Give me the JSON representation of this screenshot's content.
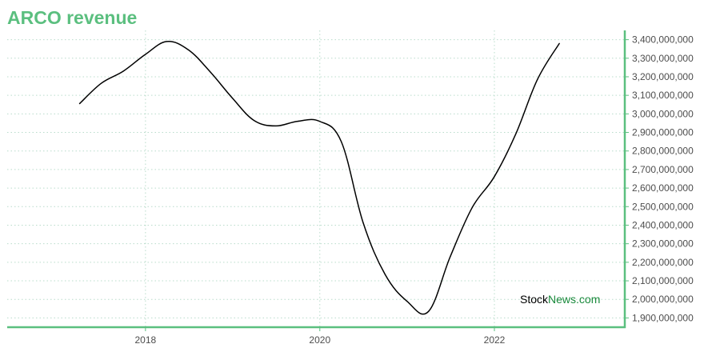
{
  "title": "ARCO revenue",
  "watermark": {
    "part1": "Stock",
    "part2": "News",
    "part3": ".com"
  },
  "colors": {
    "title": "#5bbf7f",
    "axis": "#5bbf7f",
    "grid": "#b9dccb",
    "line": "#000000",
    "tick_text": "#4d4d4d",
    "watermark_dark": "#000000",
    "watermark_green": "#1a8a3c"
  },
  "chart_data": {
    "type": "line",
    "title": "ARCO revenue",
    "xlabel": "",
    "ylabel": "",
    "grid": true,
    "x_range": [
      "2016-06-01",
      "2023-07-01"
    ],
    "ylim": [
      1850000000,
      3450000000
    ],
    "x_ticks": [
      {
        "date": "2018-01-01",
        "label": "2018"
      },
      {
        "date": "2020-01-01",
        "label": "2020"
      },
      {
        "date": "2022-01-01",
        "label": "2022"
      }
    ],
    "y_ticks": [
      1900000000,
      2000000000,
      2100000000,
      2200000000,
      2300000000,
      2400000000,
      2500000000,
      2600000000,
      2700000000,
      2800000000,
      2900000000,
      3000000000,
      3100000000,
      3200000000,
      3300000000,
      3400000000
    ],
    "y_tick_labels": [
      "1,900,000,000",
      "2,000,000,000",
      "2,100,000,000",
      "2,200,000,000",
      "2,300,000,000",
      "2,400,000,000",
      "2,500,000,000",
      "2,600,000,000",
      "2,700,000,000",
      "2,800,000,000",
      "2,900,000,000",
      "3,000,000,000",
      "3,100,000,000",
      "3,200,000,000",
      "3,300,000,000",
      "3,400,000,000"
    ],
    "series": [
      {
        "x": [
          "2017-03-31",
          "2017-06-30",
          "2017-09-30",
          "2017-12-31",
          "2018-03-31",
          "2018-06-30",
          "2018-09-30",
          "2018-12-31",
          "2019-03-31",
          "2019-06-30",
          "2019-09-30",
          "2019-12-31",
          "2020-03-31",
          "2020-06-30",
          "2020-09-30",
          "2020-12-31",
          "2021-03-31",
          "2021-06-30",
          "2021-09-30",
          "2021-12-31",
          "2022-03-31",
          "2022-06-30",
          "2022-09-30"
        ],
        "values": [
          3055000000,
          3165000000,
          3230000000,
          3320000000,
          3390000000,
          3345000000,
          3225000000,
          3085000000,
          2965000000,
          2935000000,
          2960000000,
          2960000000,
          2850000000,
          2415000000,
          2135000000,
          1990000000,
          1935000000,
          2230000000,
          2495000000,
          2660000000,
          2890000000,
          3185000000,
          3380000000
        ]
      }
    ]
  }
}
